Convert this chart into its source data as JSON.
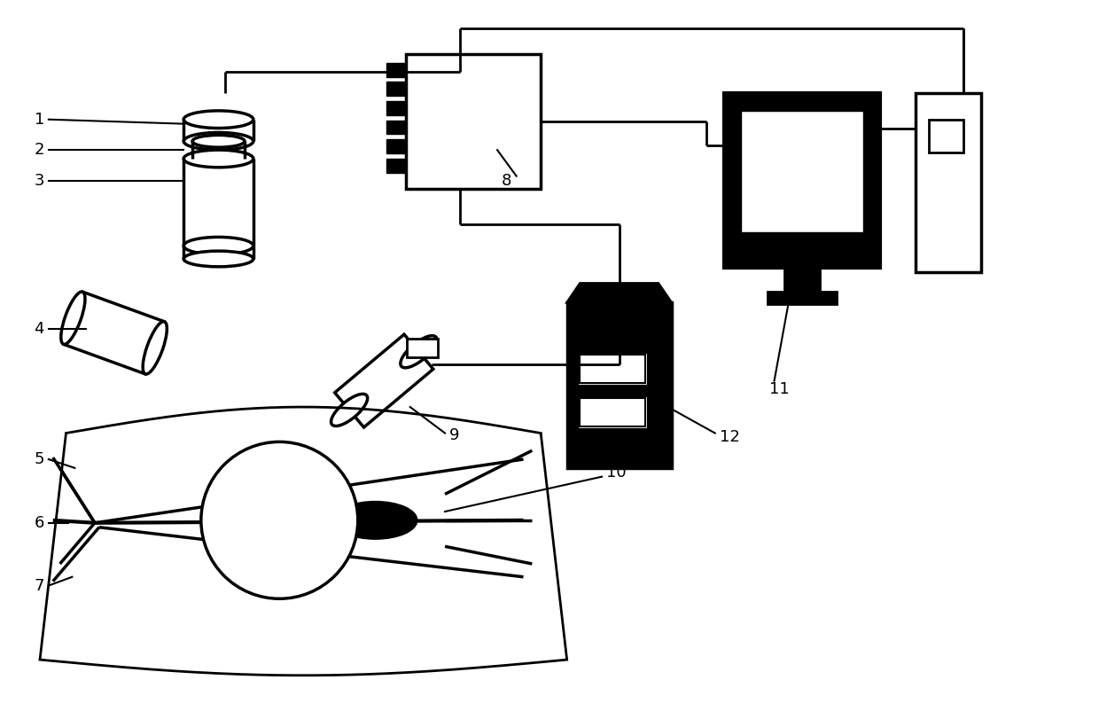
{
  "bg_color": "#ffffff",
  "lc": "#000000",
  "lw": 2.0,
  "label_fs": 13
}
